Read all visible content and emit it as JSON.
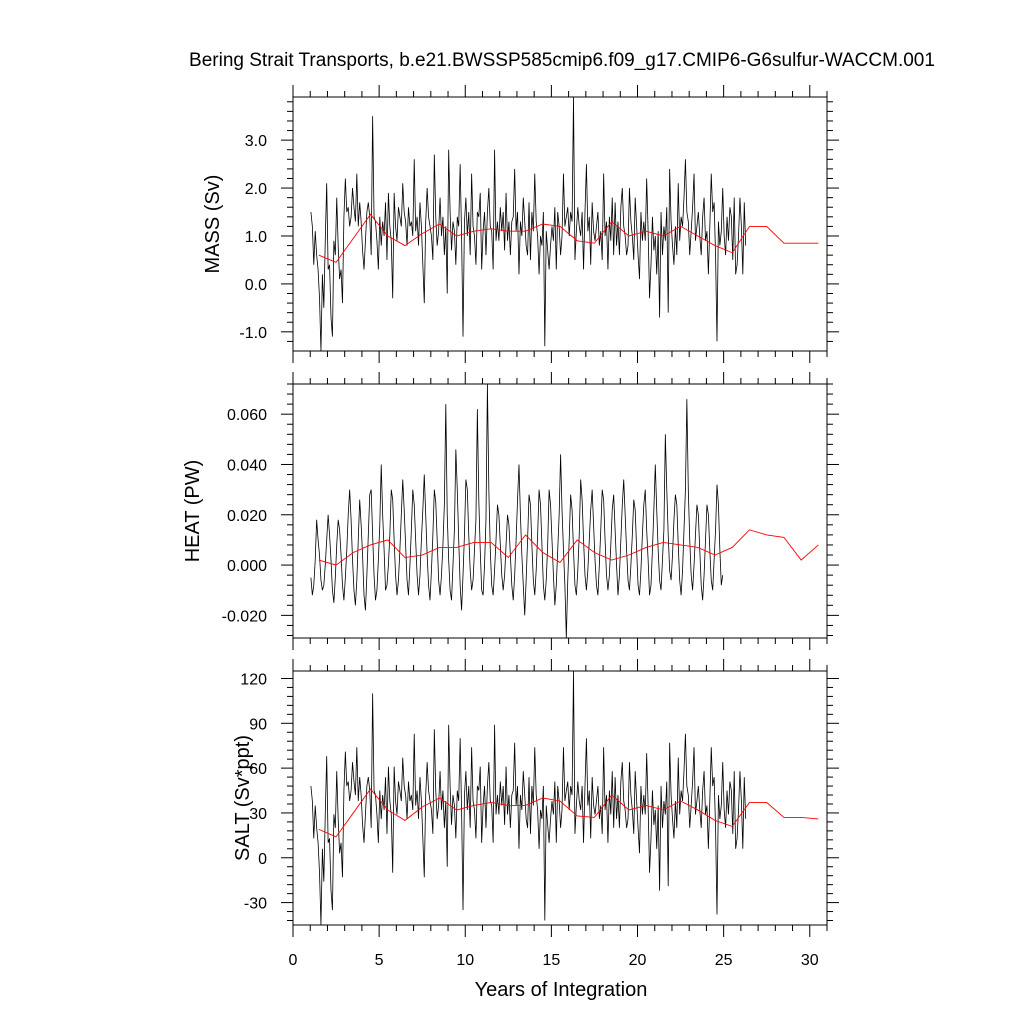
{
  "chart_data": {
    "title": "Bering Strait Transports, b.e21.BWSSP585cmip6.f09_g17.CMIP6-G6sulfur-WACCM.001",
    "type": "line",
    "xlabel": "Years of Integration",
    "xlim": [
      0,
      31
    ],
    "x_ticks": [
      "0",
      "5",
      "10",
      "15",
      "20",
      "25",
      "30"
    ],
    "colors": {
      "monthly": "#000000",
      "annual": "#ff0000"
    },
    "panels": [
      {
        "ylabel": "MASS (Sv)",
        "ylim": [
          -1.4,
          3.9
        ],
        "y_ticks": [
          -1.0,
          0.0,
          1.0,
          2.0,
          3.0
        ],
        "y_tick_labels": [
          "-1.0",
          "0.0",
          "1.0",
          "2.0",
          "3.0"
        ],
        "monthly_x_start": 1.04,
        "monthly_x_step": 0.0833,
        "monthly": [
          1.5,
          1.2,
          0.4,
          1.1,
          0.6,
          0.3,
          -0.3,
          -1.4,
          0.2,
          -0.5,
          0.9,
          2.1,
          0.3,
          0.4,
          -0.7,
          -1.1,
          0.9,
          0.6,
          1.8,
          0.8,
          0.1,
          0.3,
          -0.4,
          1.4,
          2.2,
          1.5,
          1.6,
          1.2,
          1.4,
          2.0,
          1.6,
          1.3,
          2.3,
          1.2,
          1.7,
          1.3,
          0.7,
          0.3,
          0.9,
          1.5,
          1.7,
          1.4,
          0.6,
          3.5,
          1.4,
          1.3,
          0.9,
          0.3,
          1.4,
          0.8,
          1.3,
          1.0,
          1.7,
          0.5,
          1.9,
          1.2,
          0.9,
          -0.3,
          1.9,
          1.2,
          0.9,
          1.6,
          1.4,
          1.2,
          2.1,
          1.5,
          1.3,
          0.8,
          1.6,
          1.2,
          1.3,
          1.0,
          2.6,
          1.1,
          1.4,
          0.8,
          1.7,
          1.2,
          0.4,
          -0.4,
          1.3,
          2.0,
          1.4,
          1.2,
          1.0,
          0.5,
          2.7,
          1.4,
          0.8,
          1.1,
          1.8,
          1.0,
          1.4,
          0.6,
          1.2,
          -0.2,
          2.8,
          1.5,
          0.7,
          1.3,
          1.1,
          0.4,
          1.4,
          1.2,
          2.5,
          1.0,
          -1.1,
          1.3,
          1.8,
          1.0,
          1.5,
          0.6,
          2.3,
          1.2,
          1.0,
          0.4,
          1.5,
          1.4,
          1.9,
          0.3,
          1.1,
          1.5,
          0.6,
          1.5,
          2.0,
          1.2,
          1.1,
          0.3,
          2.8,
          0.9,
          1.3,
          0.9,
          1.6,
          1.1,
          1.5,
          0.7,
          1.9,
          0.9,
          1.3,
          0.6,
          1.3,
          1.4,
          2.4,
          1.1,
          1.5,
          0.2,
          1.3,
          1.0,
          1.8,
          1.3,
          0.8,
          0.6,
          1.7,
          0.5,
          1.5,
          1.1,
          2.3,
          1.3,
          1.0,
          0.2,
          1.0,
          0.8,
          1.5,
          -1.3,
          1.1,
          0.7,
          0.3,
          0.8,
          1.2,
          0.9,
          1.6,
          0.3,
          1.5,
          1.2,
          0.6,
          1.0,
          2.3,
          1.2,
          1.4,
          1.6,
          1.0,
          1.5,
          1.3,
          3.9,
          0.5,
          1.1,
          1.6,
          1.2,
          1.0,
          1.5,
          0.3,
          1.5,
          2.5,
          1.1,
          1.4,
          0.4,
          1.7,
          1.1,
          0.9,
          1.2,
          1.5,
          0.8,
          1.1,
          0.5,
          2.3,
          1.0,
          1.3,
          0.3,
          1.4,
          0.9,
          1.8,
          0.6,
          1.7,
          0.8,
          1.3,
          0.6,
          1.6,
          2.0,
          1.2,
          1.0,
          0.6,
          0.8,
          2.0,
          1.3,
          1.0,
          0.5,
          1.8,
          1.2,
          0.6,
          0.1,
          1.5,
          0.9,
          1.3,
          0.9,
          2.2,
          1.1,
          -0.3,
          0.4,
          1.4,
          0.7,
          1.0,
          0.2,
          1.1,
          -0.7,
          1.5,
          0.6,
          1.2,
          0.9,
          1.6,
          -0.6,
          2.4,
          1.3,
          0.8,
          0.4,
          1.2,
          0.6,
          2.1,
          0.9,
          1.4,
          1.2,
          1.8,
          2.6,
          1.5,
          1.3,
          0.6,
          1.1,
          1.6,
          2.3,
          0.9,
          1.2,
          1.5,
          1.0,
          0.6,
          1.4,
          1.8,
          0.9,
          1.1,
          0.2,
          1.2,
          2.3,
          1.5,
          1.7,
          0.6,
          -1.2,
          1.3,
          0.8,
          1.1,
          2.0,
          1.0,
          0.6,
          1.4,
          0.9,
          1.6,
          1.4,
          0.5,
          1.8,
          0.2,
          0.4,
          1.0,
          1.8,
          1.2,
          0.2,
          1.7,
          0.8
        ],
        "annual_x": [
          1.5,
          2.5,
          3.5,
          4.5,
          5.5,
          6.5,
          7.5,
          8.5,
          9.5,
          10.5,
          11.5,
          12.5,
          13.5,
          14.5,
          15.5,
          16.5,
          17.5,
          18.5,
          19.5,
          20.5,
          21.5,
          22.5,
          23.5,
          24.5,
          25.5,
          26.5,
          27.5,
          28.5,
          29.5,
          30.5
        ],
        "annual": [
          0.6,
          0.45,
          0.95,
          1.45,
          1.0,
          0.8,
          1.05,
          1.25,
          1.0,
          1.1,
          1.15,
          1.1,
          1.1,
          1.25,
          1.2,
          0.9,
          0.85,
          1.3,
          1.0,
          1.1,
          1.0,
          1.2,
          1.0,
          0.8,
          0.65,
          1.2,
          1.2,
          0.85,
          0.85,
          0.85
        ]
      },
      {
        "ylabel": "HEAT (PW)",
        "ylim": [
          -0.029,
          0.072
        ],
        "y_ticks": [
          -0.02,
          0.0,
          0.02,
          0.04,
          0.06
        ],
        "y_tick_labels": [
          "-0.020",
          "0.000",
          "0.020",
          "0.040",
          "0.060"
        ],
        "monthly_x_start": 1.04,
        "monthly_x_step": 0.0833,
        "monthly": [
          -0.005,
          -0.012,
          -0.008,
          0.002,
          0.018,
          0.01,
          0.004,
          -0.006,
          -0.01,
          -0.008,
          0.0,
          0.01,
          0.02,
          0.012,
          0.002,
          -0.01,
          -0.015,
          -0.005,
          0.008,
          0.018,
          0.014,
          0.004,
          -0.008,
          -0.014,
          -0.005,
          0.006,
          0.02,
          0.03,
          0.018,
          0.002,
          -0.01,
          -0.016,
          -0.006,
          0.01,
          0.026,
          0.016,
          0.004,
          -0.012,
          -0.018,
          -0.004,
          0.012,
          0.028,
          0.03,
          0.012,
          -0.004,
          -0.014,
          -0.01,
          0.002,
          0.016,
          0.04,
          0.02,
          0.006,
          -0.01,
          -0.008,
          0.0,
          0.012,
          0.03,
          0.026,
          0.01,
          -0.004,
          -0.012,
          -0.006,
          0.006,
          0.02,
          0.034,
          0.022,
          0.008,
          -0.006,
          -0.012,
          0.0,
          0.014,
          0.03,
          0.024,
          0.01,
          -0.004,
          -0.012,
          -0.004,
          0.01,
          0.022,
          0.036,
          0.02,
          0.004,
          -0.008,
          -0.014,
          -0.002,
          0.012,
          0.03,
          0.025,
          0.01,
          -0.006,
          -0.012,
          -0.004,
          0.008,
          0.024,
          0.064,
          0.02,
          0.002,
          -0.01,
          -0.014,
          0.0,
          0.014,
          0.046,
          0.03,
          0.01,
          -0.008,
          -0.018,
          -0.004,
          0.012,
          0.034,
          0.03,
          0.012,
          -0.002,
          -0.01,
          -0.006,
          0.006,
          0.018,
          0.062,
          0.026,
          0.006,
          -0.01,
          -0.012,
          0.0,
          0.018,
          0.072,
          0.03,
          0.006,
          -0.008,
          -0.012,
          -0.002,
          0.01,
          0.024,
          0.02,
          0.008,
          -0.004,
          -0.01,
          -0.004,
          0.008,
          0.02,
          0.016,
          0.004,
          -0.008,
          -0.014,
          -0.004,
          0.01,
          0.026,
          0.04,
          0.02,
          0.004,
          -0.008,
          -0.02,
          -0.006,
          0.01,
          0.028,
          0.024,
          0.008,
          -0.006,
          -0.012,
          -0.002,
          0.012,
          0.03,
          0.024,
          0.008,
          -0.008,
          -0.014,
          -0.006,
          0.008,
          0.03,
          0.024,
          0.01,
          -0.004,
          -0.016,
          -0.008,
          0.006,
          0.02,
          0.044,
          0.022,
          0.006,
          -0.008,
          -0.029,
          -0.006,
          0.01,
          0.028,
          0.022,
          0.006,
          -0.008,
          -0.012,
          -0.002,
          0.012,
          0.034,
          0.026,
          0.01,
          -0.004,
          -0.01,
          -0.002,
          0.01,
          0.022,
          0.03,
          0.016,
          0.002,
          -0.008,
          -0.012,
          0.0,
          0.014,
          0.03,
          0.026,
          0.01,
          -0.004,
          -0.01,
          -0.004,
          0.008,
          0.022,
          0.028,
          0.014,
          0.0,
          -0.012,
          -0.004,
          0.01,
          0.024,
          0.034,
          0.02,
          0.006,
          -0.006,
          -0.01,
          0.0,
          0.012,
          0.026,
          0.022,
          0.006,
          -0.008,
          -0.012,
          -0.002,
          0.012,
          0.024,
          0.03,
          0.014,
          0.002,
          -0.012,
          -0.008,
          0.006,
          0.022,
          0.04,
          0.022,
          0.006,
          -0.006,
          -0.01,
          0.002,
          0.014,
          0.052,
          0.03,
          0.012,
          -0.002,
          -0.006,
          0.004,
          0.018,
          0.028,
          0.024,
          0.008,
          -0.006,
          -0.012,
          -0.002,
          0.014,
          0.03,
          0.066,
          0.03,
          0.01,
          -0.004,
          -0.01,
          0.0,
          0.012,
          0.024,
          0.02,
          0.006,
          -0.008,
          -0.014,
          -0.004,
          0.01,
          0.024,
          0.02,
          0.006,
          -0.006,
          -0.01,
          0.002,
          0.014,
          0.032,
          0.024,
          0.006,
          -0.008,
          -0.004
        ],
        "annual_x": [
          1.5,
          2.5,
          3.5,
          4.5,
          5.5,
          6.5,
          7.5,
          8.5,
          9.5,
          10.5,
          11.5,
          12.5,
          13.5,
          14.5,
          15.5,
          16.5,
          17.5,
          18.5,
          19.5,
          20.5,
          21.5,
          22.5,
          23.5,
          24.5,
          25.5,
          26.5,
          27.5,
          28.5,
          29.5,
          30.5
        ],
        "annual": [
          0.002,
          0.0,
          0.005,
          0.008,
          0.01,
          0.003,
          0.004,
          0.007,
          0.007,
          0.009,
          0.009,
          0.003,
          0.012,
          0.005,
          0.001,
          0.01,
          0.005,
          0.002,
          0.004,
          0.007,
          0.009,
          0.008,
          0.007,
          0.004,
          0.007,
          0.014,
          0.012,
          0.011,
          0.002,
          0.008
        ]
      },
      {
        "ylabel": "SALT (Sv*ppt)",
        "ylim": [
          -45,
          125
        ],
        "y_ticks": [
          -30,
          0,
          30,
          60,
          90,
          120
        ],
        "y_tick_labels": [
          "-30",
          "0",
          "30",
          "60",
          "90",
          "120"
        ],
        "monthly_x_start": 1.04,
        "monthly_x_step": 0.0833,
        "monthly": [
          48,
          38,
          13,
          35,
          20,
          10,
          -10,
          -45,
          6,
          -16,
          29,
          68,
          10,
          13,
          -22,
          -35,
          29,
          20,
          58,
          26,
          3,
          10,
          -13,
          45,
          71,
          48,
          51,
          38,
          45,
          64,
          51,
          42,
          74,
          38,
          54,
          42,
          22,
          10,
          29,
          48,
          54,
          45,
          20,
          110,
          45,
          42,
          29,
          10,
          45,
          26,
          42,
          32,
          54,
          16,
          61,
          38,
          29,
          -10,
          61,
          38,
          29,
          51,
          45,
          38,
          67,
          48,
          42,
          26,
          51,
          38,
          42,
          32,
          83,
          35,
          45,
          26,
          54,
          38,
          13,
          -13,
          42,
          64,
          45,
          38,
          32,
          16,
          86,
          45,
          26,
          35,
          58,
          32,
          45,
          20,
          38,
          -6,
          89,
          48,
          22,
          42,
          35,
          13,
          45,
          38,
          80,
          32,
          -35,
          42,
          58,
          32,
          48,
          20,
          74,
          38,
          32,
          13,
          48,
          45,
          61,
          10,
          35,
          48,
          20,
          48,
          64,
          38,
          35,
          10,
          89,
          29,
          42,
          29,
          51,
          35,
          48,
          22,
          61,
          29,
          42,
          20,
          42,
          45,
          77,
          35,
          48,
          6,
          42,
          32,
          58,
          42,
          26,
          20,
          54,
          16,
          48,
          35,
          74,
          42,
          32,
          6,
          32,
          26,
          48,
          -42,
          35,
          22,
          10,
          26,
          38,
          29,
          51,
          10,
          48,
          38,
          20,
          32,
          74,
          38,
          45,
          51,
          32,
          48,
          42,
          125,
          16,
          35,
          51,
          38,
          32,
          48,
          10,
          48,
          80,
          35,
          45,
          13,
          54,
          35,
          29,
          38,
          48,
          26,
          35,
          16,
          74,
          32,
          42,
          10,
          45,
          29,
          58,
          20,
          54,
          26,
          42,
          20,
          51,
          64,
          38,
          32,
          20,
          26,
          64,
          42,
          32,
          16,
          58,
          38,
          20,
          3,
          48,
          29,
          42,
          29,
          70,
          35,
          -10,
          13,
          45,
          22,
          32,
          6,
          35,
          -22,
          48,
          20,
          38,
          29,
          51,
          -19,
          77,
          42,
          26,
          13,
          38,
          20,
          67,
          29,
          45,
          38,
          58,
          83,
          48,
          42,
          20,
          35,
          51,
          74,
          29,
          38,
          48,
          32,
          20,
          45,
          58,
          29,
          35,
          6,
          38,
          74,
          48,
          54,
          20,
          -38,
          42,
          26,
          35,
          64,
          32,
          20,
          45,
          29,
          51,
          45,
          16,
          58,
          6,
          13,
          32,
          58,
          38,
          6,
          54,
          26
        ],
        "annual_x": [
          1.5,
          2.5,
          3.5,
          4.5,
          5.5,
          6.5,
          7.5,
          8.5,
          9.5,
          10.5,
          11.5,
          12.5,
          13.5,
          14.5,
          15.5,
          16.5,
          17.5,
          18.5,
          19.5,
          20.5,
          21.5,
          22.5,
          23.5,
          24.5,
          25.5,
          26.5,
          27.5,
          28.5,
          29.5,
          30.5
        ],
        "annual": [
          19,
          14,
          30,
          46,
          32,
          25,
          34,
          40,
          32,
          35,
          37,
          35,
          35,
          40,
          38,
          28,
          27,
          42,
          32,
          35,
          32,
          38,
          32,
          25,
          21,
          37,
          37,
          27,
          27,
          26
        ]
      }
    ]
  }
}
